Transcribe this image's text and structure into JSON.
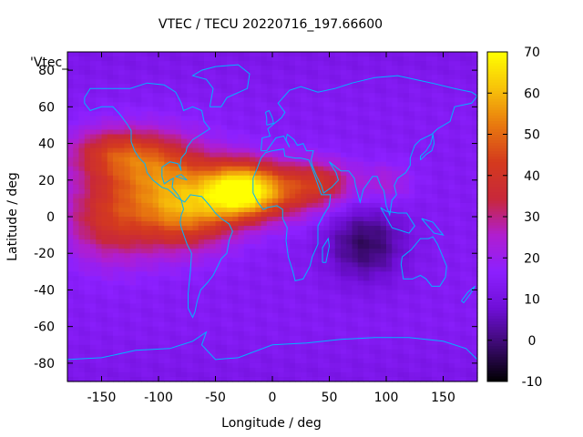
{
  "chart_data": {
    "type": "heatmap",
    "title": "VTEC / TECU 20220716_197.66600",
    "xlabel": "Longitude / deg",
    "ylabel": "Latitude / deg",
    "series_key": "'Vtec_",
    "xlim": [
      -180,
      180
    ],
    "ylim": [
      -90,
      90
    ],
    "x_ticks": [
      -150,
      -100,
      -50,
      0,
      50,
      100,
      150
    ],
    "y_ticks": [
      -80,
      -60,
      -40,
      -20,
      0,
      20,
      40,
      60,
      80
    ],
    "colorbar": {
      "range": [
        -10,
        70
      ],
      "ticks": [
        -10,
        0,
        10,
        20,
        30,
        40,
        50,
        60,
        70
      ],
      "palette": [
        "#000000",
        "#3a0a6e",
        "#6f0fd6",
        "#8c20ff",
        "#b01ed0",
        "#c8283a",
        "#d43a1e",
        "#e8780f",
        "#f7c10a",
        "#ffff00"
      ]
    },
    "grid_lon_step": 5,
    "grid_lat_step": 2.5,
    "vtec_sources": [
      {
        "region": "background",
        "lon": 0,
        "lat": 0,
        "value": 14
      },
      {
        "region": "equatorial-atlantic-peak",
        "lon": -30,
        "lat": 14,
        "value": 62
      },
      {
        "region": "south-america-west",
        "lon": -75,
        "lat": 2,
        "value": 48
      },
      {
        "region": "pacific-east",
        "lon": -140,
        "lat": 0,
        "value": 40
      },
      {
        "region": "north-pacific",
        "lon": -140,
        "lat": 35,
        "value": 36
      },
      {
        "region": "north-america",
        "lon": -95,
        "lat": 25,
        "value": 40
      },
      {
        "region": "africa-west",
        "lon": 5,
        "lat": 14,
        "value": 38
      },
      {
        "region": "arabia",
        "lon": 45,
        "lat": 18,
        "value": 34
      },
      {
        "region": "india",
        "lon": 100,
        "lat": 18,
        "value": 24
      },
      {
        "region": "indian-ocean-low",
        "lon": 82,
        "lat": -15,
        "value": -2
      }
    ],
    "coastline_color": "#00b4ff"
  }
}
